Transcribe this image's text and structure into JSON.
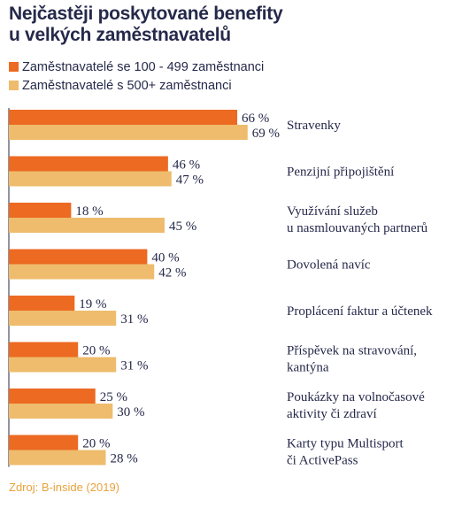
{
  "title_lines": [
    "Nejčastěji poskytované benefity",
    "u velkých zaměstnavatelů"
  ],
  "source": "Zdroj: B-inside (2019)",
  "colors": {
    "series1": "#ec6a22",
    "series2": "#eebc6c",
    "text": "#25294a",
    "axis": "#25294a",
    "source": "#e8a33c"
  },
  "chart_data": {
    "type": "bar",
    "orientation": "horizontal",
    "unit": "%",
    "xlim": [
      0,
      100
    ],
    "grid": false,
    "legend_position": "top-left",
    "categories": [
      [
        "Stravenky"
      ],
      [
        "Penzijní připojištění"
      ],
      [
        "Využívání služeb",
        "u nasmlouvaných partnerů"
      ],
      [
        "Dovolená navíc"
      ],
      [
        "Proplácení faktur a účtenek"
      ],
      [
        "Příspěvek na stravování,",
        "kantýna"
      ],
      [
        "Poukázky na volnočasové",
        "aktivity či zdraví"
      ],
      [
        "Karty typu Multisport",
        "či ActivePass"
      ]
    ],
    "series": [
      {
        "name": "Zaměstnavatelé se 100 - 499 zaměstnanci",
        "values": [
          66,
          46,
          18,
          40,
          19,
          20,
          25,
          20
        ]
      },
      {
        "name": "Zaměstnavatelé s 500+ zaměstnanci",
        "values": [
          69,
          47,
          45,
          42,
          31,
          31,
          30,
          28
        ]
      }
    ]
  }
}
